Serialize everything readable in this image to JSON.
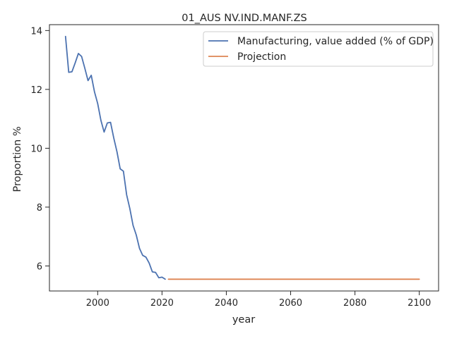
{
  "chart_data": {
    "type": "line",
    "title": "01_AUS NV.IND.MANF.ZS",
    "xlabel": "year",
    "ylabel": "Proportion %",
    "xlim": [
      1985,
      2106
    ],
    "ylim": [
      5.15,
      14.2
    ],
    "xticks": [
      2000,
      2020,
      2040,
      2060,
      2080,
      2100
    ],
    "yticks": [
      6,
      8,
      10,
      12,
      14
    ],
    "grid": false,
    "legend_position": "top-right",
    "series": [
      {
        "name": "Manufacturing, value added (% of GDP)",
        "color": "#4c72b0",
        "x": [
          1990,
          1991,
          1992,
          1993,
          1994,
          1995,
          1996,
          1997,
          1998,
          1999,
          2000,
          2001,
          2002,
          2003,
          2004,
          2005,
          2006,
          2007,
          2008,
          2009,
          2010,
          2011,
          2012,
          2013,
          2014,
          2015,
          2016,
          2017,
          2018,
          2019,
          2020,
          2021
        ],
        "y": [
          13.8,
          12.58,
          12.6,
          12.9,
          13.22,
          13.12,
          12.72,
          12.3,
          12.48,
          11.92,
          11.52,
          10.95,
          10.55,
          10.86,
          10.88,
          10.35,
          9.88,
          9.3,
          9.22,
          8.42,
          7.95,
          7.38,
          7.05,
          6.6,
          6.36,
          6.3,
          6.1,
          5.8,
          5.78,
          5.6,
          5.62,
          5.55
        ]
      },
      {
        "name": "Projection",
        "color": "#dd8452",
        "x": [
          2022,
          2100
        ],
        "y": [
          5.55,
          5.55
        ]
      }
    ]
  }
}
